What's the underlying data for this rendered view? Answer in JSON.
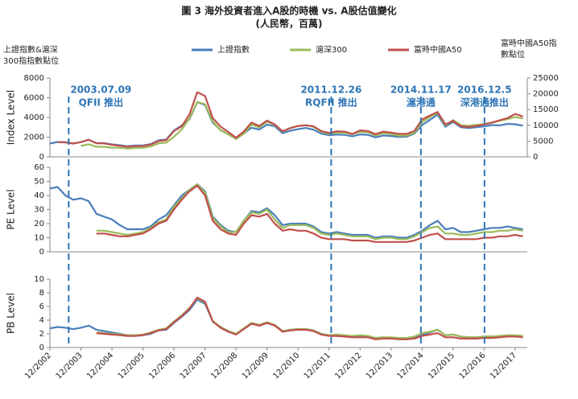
{
  "chart_data": [
    {
      "type": "line",
      "title": "圖 3 海外投資者進入A股的時機 vs. A股估值變化",
      "subtitle": "(人民幣，百萬)",
      "left_axis_note": [
        "上證指數&滬深",
        "300指指數點位"
      ],
      "right_axis_note": [
        "富時中國A50指",
        "數點位"
      ],
      "ylabel": "Index Level",
      "annotations": [
        {
          "date": "2003.07.09",
          "text": "QFII 推出"
        },
        {
          "date": "2011.12.26",
          "text": "RQFII 推出"
        },
        {
          "date": "2014.11.17",
          "text": "滬港通"
        },
        {
          "date": "2016.12.5",
          "text": "深港通推出"
        }
      ],
      "x": [
        "12/2002",
        "03/2003",
        "06/2003",
        "09/2003",
        "12/2003",
        "03/2004",
        "06/2004",
        "09/2004",
        "12/2004",
        "03/2005",
        "06/2005",
        "09/2005",
        "12/2005",
        "03/2006",
        "06/2006",
        "09/2006",
        "12/2006",
        "03/2007",
        "06/2007",
        "09/2007",
        "12/2007",
        "03/2008",
        "06/2008",
        "09/2008",
        "12/2008",
        "03/2009",
        "06/2009",
        "09/2009",
        "12/2009",
        "03/2010",
        "06/2010",
        "09/2010",
        "12/2010",
        "03/2011",
        "06/2011",
        "09/2011",
        "12/2011",
        "03/2012",
        "06/2012",
        "09/2012",
        "12/2012",
        "03/2013",
        "06/2013",
        "09/2013",
        "12/2013",
        "03/2014",
        "06/2014",
        "09/2014",
        "12/2014",
        "03/2015",
        "06/2015",
        "09/2015",
        "12/2015",
        "03/2016",
        "06/2016",
        "09/2016",
        "12/2016",
        "03/2017",
        "06/2017",
        "09/2017",
        "12/2017",
        "03/2018"
      ],
      "ylim": [
        0,
        8000
      ],
      "yticks": [
        0,
        2000,
        4000,
        6000,
        8000
      ],
      "y2lim": [
        0,
        25000
      ],
      "y2ticks": [
        0,
        5000,
        10000,
        15000,
        20000,
        25000
      ],
      "series": [
        {
          "name": "上證指數",
          "color": "#4a7ebb",
          "values": [
            1357,
            1510,
            1487,
            1367,
            1497,
            1742,
            1399,
            1396,
            1266,
            1181,
            1080,
            1155,
            1161,
            1299,
            1672,
            1753,
            2675,
            3183,
            3821,
            5552,
            5262,
            3473,
            2736,
            2293,
            1821,
            2373,
            2959,
            2779,
            3277,
            3109,
            2398,
            2656,
            2808,
            2928,
            2762,
            2359,
            2199,
            2263,
            2225,
            2086,
            2269,
            2237,
            1979,
            2175,
            2116,
            2033,
            2048,
            2364,
            3235,
            3748,
            4277,
            3053,
            3539,
            3004,
            2930,
            3005,
            3104,
            3223,
            3192,
            3349,
            3307,
            3169
          ]
        },
        {
          "name": "滬深300",
          "color": "#9bbb59",
          "values": [
            null,
            null,
            null,
            null,
            1100,
            1280,
            1030,
            1020,
            932,
            920,
            850,
            898,
            923,
            1050,
            1370,
            1450,
            2041,
            2781,
            3906,
            5574,
            5338,
            3589,
            2700,
            2300,
            1817,
            2352,
            3285,
            2988,
            3575,
            3254,
            2563,
            2935,
            3128,
            3223,
            3044,
            2567,
            2345,
            2455,
            2462,
            2293,
            2523,
            2495,
            2164,
            2410,
            2330,
            2146,
            2165,
            2450,
            3533,
            4051,
            4473,
            3203,
            3731,
            3218,
            3154,
            3253,
            3310,
            3456,
            3666,
            3837,
            4030,
            3898
          ]
        },
        {
          "name": "富時中國A50",
          "color": "#c0504d",
          "axis": "y2",
          "values": [
            null,
            4700,
            4600,
            4200,
            4700,
            5400,
            4300,
            4250,
            3800,
            3500,
            3200,
            3400,
            3450,
            3900,
            5000,
            5300,
            8200,
            9700,
            13500,
            20500,
            19300,
            12300,
            9600,
            7900,
            6100,
            8000,
            10900,
            9800,
            11500,
            10300,
            8100,
            9100,
            9800,
            10000,
            9700,
            8200,
            7600,
            8100,
            8000,
            7300,
            8400,
            8200,
            7200,
            8000,
            7700,
            7300,
            7300,
            8200,
            11900,
            13100,
            14200,
            10300,
            11400,
            9700,
            9500,
            9800,
            10300,
            10900,
            11600,
            12300,
            13600,
            12800
          ]
        }
      ]
    },
    {
      "type": "line",
      "ylabel": "PE Level",
      "x": [
        "12/2002",
        "03/2003",
        "06/2003",
        "09/2003",
        "12/2003",
        "03/2004",
        "06/2004",
        "09/2004",
        "12/2004",
        "03/2005",
        "06/2005",
        "09/2005",
        "12/2005",
        "03/2006",
        "06/2006",
        "09/2006",
        "12/2006",
        "03/2007",
        "06/2007",
        "09/2007",
        "12/2007",
        "03/2008",
        "06/2008",
        "09/2008",
        "12/2008",
        "03/2009",
        "06/2009",
        "09/2009",
        "12/2009",
        "03/2010",
        "06/2010",
        "09/2010",
        "12/2010",
        "03/2011",
        "06/2011",
        "09/2011",
        "12/2011",
        "03/2012",
        "06/2012",
        "09/2012",
        "12/2012",
        "03/2013",
        "06/2013",
        "09/2013",
        "12/2013",
        "03/2014",
        "06/2014",
        "09/2014",
        "12/2014",
        "03/2015",
        "06/2015",
        "09/2015",
        "12/2015",
        "03/2016",
        "06/2016",
        "09/2016",
        "12/2016",
        "03/2017",
        "06/2017",
        "09/2017",
        "12/2017",
        "03/2018"
      ],
      "ylim": [
        0,
        60
      ],
      "yticks": [
        0,
        10,
        20,
        30,
        40,
        50,
        60
      ],
      "series": [
        {
          "color": "#4a7ebb",
          "values": [
            45,
            46,
            40,
            37,
            38,
            36,
            27,
            25,
            23,
            19,
            16,
            16,
            16,
            18,
            23,
            26,
            33,
            40,
            44,
            48,
            43,
            25,
            19,
            15,
            14,
            22,
            29,
            28,
            31,
            26,
            19,
            20,
            20,
            20,
            18,
            14,
            13,
            14,
            13,
            12,
            12,
            12,
            10,
            11,
            11,
            10,
            10,
            12,
            15,
            19,
            22,
            16,
            17,
            14,
            14,
            15,
            16,
            17,
            17,
            18,
            17,
            16
          ]
        },
        {
          "color": "#9bbb59",
          "values": [
            null,
            null,
            null,
            null,
            null,
            null,
            15,
            15,
            14,
            13,
            12,
            13,
            14,
            17,
            21,
            23,
            32,
            38,
            44,
            48,
            42,
            24,
            18,
            14,
            14,
            22,
            28,
            27,
            30,
            23,
            17,
            19,
            19,
            19,
            17,
            13,
            12,
            13,
            12,
            11,
            11,
            11,
            9,
            10,
            10,
            9,
            9,
            11,
            14,
            17,
            18,
            13,
            13,
            12,
            12,
            13,
            14,
            14,
            15,
            15,
            16,
            15
          ]
        },
        {
          "color": "#c0504d",
          "values": [
            null,
            null,
            null,
            null,
            null,
            null,
            13,
            13,
            12,
            11,
            11,
            12,
            13,
            16,
            20,
            22,
            30,
            37,
            43,
            47,
            40,
            22,
            16,
            13,
            12,
            20,
            26,
            25,
            27,
            20,
            15,
            16,
            15,
            15,
            13,
            10,
            9,
            9,
            9,
            8,
            8,
            8,
            7,
            7,
            7,
            7,
            7,
            8,
            10,
            12,
            13,
            9,
            9,
            9,
            9,
            9,
            10,
            10,
            11,
            11,
            12,
            11
          ]
        }
      ]
    },
    {
      "type": "line",
      "ylabel": "PB Level",
      "x": [
        "12/2002",
        "03/2003",
        "06/2003",
        "09/2003",
        "12/2003",
        "03/2004",
        "06/2004",
        "09/2004",
        "12/2004",
        "03/2005",
        "06/2005",
        "09/2005",
        "12/2005",
        "03/2006",
        "06/2006",
        "09/2006",
        "12/2006",
        "03/2007",
        "06/2007",
        "09/2007",
        "12/2007",
        "03/2008",
        "06/2008",
        "09/2008",
        "12/2008",
        "03/2009",
        "06/2009",
        "09/2009",
        "12/2009",
        "03/2010",
        "06/2010",
        "09/2010",
        "12/2010",
        "03/2011",
        "06/2011",
        "09/2011",
        "12/2011",
        "03/2012",
        "06/2012",
        "09/2012",
        "12/2012",
        "03/2013",
        "06/2013",
        "09/2013",
        "12/2013",
        "03/2014",
        "06/2014",
        "09/2014",
        "12/2014",
        "03/2015",
        "06/2015",
        "09/2015",
        "12/2015",
        "03/2016",
        "06/2016",
        "09/2016",
        "12/2016",
        "03/2017",
        "06/2017",
        "09/2017",
        "12/2017",
        "03/2018"
      ],
      "ylim": [
        0,
        10
      ],
      "yticks": [
        0,
        2,
        4,
        6,
        8,
        10
      ],
      "xticks": [
        "12/2002",
        "12/2003",
        "12/2004",
        "12/2005",
        "12/2006",
        "12/2007",
        "12/2008",
        "12/2009",
        "12/2010",
        "12/2011",
        "12/2012",
        "12/2013",
        "12/2014",
        "12/2015",
        "12/2016",
        "12/2017"
      ],
      "series": [
        {
          "color": "#4a7ebb",
          "values": [
            2.8,
            3.0,
            2.9,
            2.7,
            2.9,
            3.2,
            2.6,
            2.4,
            2.2,
            2.0,
            1.8,
            1.8,
            1.8,
            2.0,
            2.5,
            2.6,
            3.6,
            4.5,
            5.5,
            7.0,
            6.4,
            3.8,
            3.0,
            2.4,
            2.0,
            2.7,
            3.5,
            3.2,
            3.6,
            3.3,
            2.4,
            2.6,
            2.7,
            2.7,
            2.5,
            2.0,
            1.8,
            1.8,
            1.8,
            1.6,
            1.7,
            1.6,
            1.4,
            1.5,
            1.4,
            1.3,
            1.3,
            1.5,
            1.9,
            2.2,
            2.6,
            1.8,
            1.9,
            1.6,
            1.5,
            1.5,
            1.6,
            1.6,
            1.6,
            1.7,
            1.7,
            1.6
          ]
        },
        {
          "color": "#9bbb59",
          "values": [
            null,
            null,
            null,
            null,
            null,
            null,
            2.2,
            2.1,
            2.0,
            1.9,
            1.8,
            1.8,
            1.9,
            2.2,
            2.6,
            2.8,
            3.8,
            4.7,
            5.8,
            7.2,
            6.6,
            3.9,
            3.0,
            2.4,
            2.0,
            2.8,
            3.6,
            3.3,
            3.7,
            3.3,
            2.4,
            2.6,
            2.7,
            2.7,
            2.5,
            2.0,
            1.8,
            1.9,
            1.8,
            1.7,
            1.8,
            1.7,
            1.4,
            1.5,
            1.5,
            1.4,
            1.4,
            1.6,
            2.1,
            2.3,
            2.6,
            1.8,
            1.9,
            1.6,
            1.5,
            1.5,
            1.6,
            1.6,
            1.7,
            1.8,
            1.8,
            1.7
          ]
        },
        {
          "color": "#c0504d",
          "values": [
            null,
            null,
            null,
            null,
            null,
            null,
            2.1,
            2.0,
            1.9,
            1.8,
            1.7,
            1.7,
            1.8,
            2.1,
            2.5,
            2.7,
            3.7,
            4.6,
            5.7,
            7.3,
            6.7,
            3.8,
            2.9,
            2.3,
            1.9,
            2.7,
            3.5,
            3.2,
            3.6,
            3.2,
            2.3,
            2.5,
            2.6,
            2.6,
            2.4,
            1.9,
            1.7,
            1.7,
            1.6,
            1.5,
            1.5,
            1.5,
            1.2,
            1.3,
            1.3,
            1.2,
            1.2,
            1.3,
            1.7,
            1.9,
            2.1,
            1.5,
            1.5,
            1.3,
            1.3,
            1.3,
            1.4,
            1.4,
            1.5,
            1.6,
            1.6,
            1.5
          ]
        }
      ]
    }
  ]
}
